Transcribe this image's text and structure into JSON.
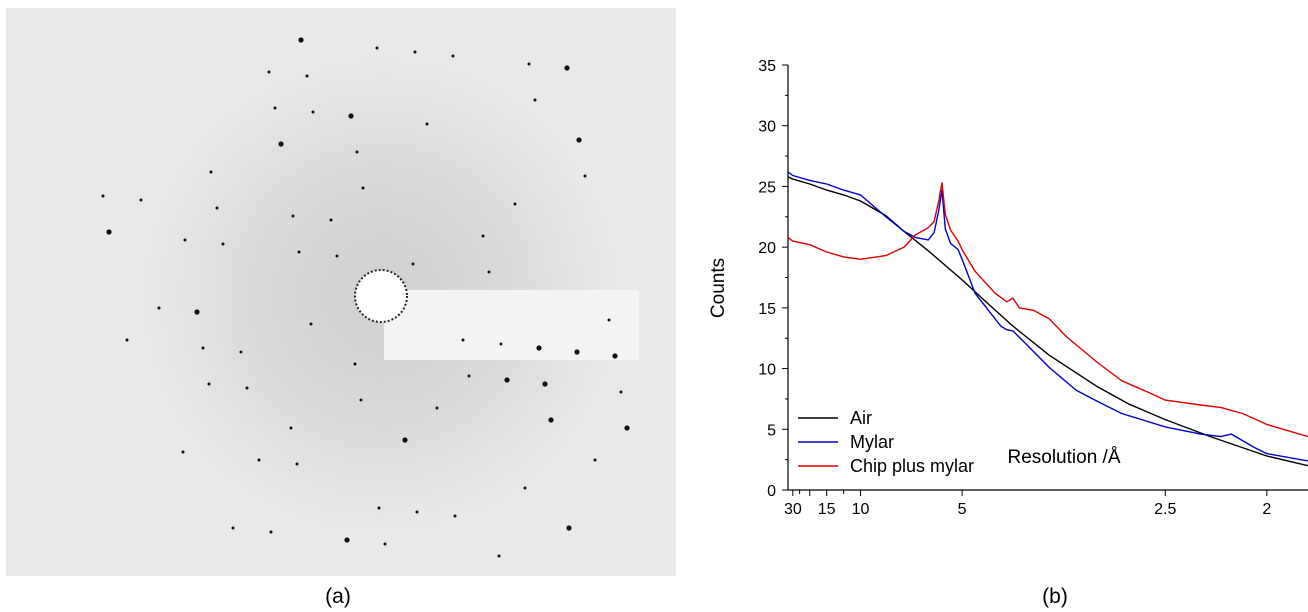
{
  "captions": {
    "a": "(a)",
    "b": "(b)"
  },
  "chart_data": {
    "type": "line",
    "xlabel": "Resolution /Å",
    "ylabel": "Counts",
    "x_scale": "reciprocal",
    "xlim": [
      35,
      1.85
    ],
    "ylim": [
      0,
      35
    ],
    "y_ticks": [
      0,
      5,
      10,
      15,
      20,
      25,
      30,
      35
    ],
    "x_ticks": [
      {
        "value": 30,
        "label": "30"
      },
      {
        "value": 20,
        "label": ""
      },
      {
        "value": 15,
        "label": "15"
      },
      {
        "value": 10,
        "label": "10"
      },
      {
        "value": 5,
        "label": "5"
      },
      {
        "value": 2.5,
        "label": "2.5"
      },
      {
        "value": 2,
        "label": "2"
      }
    ],
    "legend_position": "bottom-left",
    "series": [
      {
        "name": "Air",
        "color": "#000000",
        "x": [
          35,
          30,
          20,
          15,
          12,
          10,
          8,
          7,
          6,
          5,
          4.5,
          4,
          3.5,
          3,
          2.75,
          2.5,
          2.25,
          2,
          1.85
        ],
        "y": [
          25.8,
          25.6,
          25.2,
          24.7,
          24.3,
          23.8,
          22.6,
          21.3,
          19.7,
          17.3,
          15.6,
          13.5,
          11.1,
          8.5,
          7.1,
          5.8,
          4.4,
          2.8,
          2.0
        ]
      },
      {
        "name": "Mylar",
        "color": "#0000cc",
        "x": [
          35,
          30,
          20,
          15,
          12,
          10,
          8,
          7,
          6.5,
          6.0,
          5.8,
          5.65,
          5.55,
          5.45,
          5.3,
          5.1,
          5,
          4.7,
          4.2,
          4.1,
          4.0,
          3.8,
          3.5,
          3.2,
          3,
          2.8,
          2.5,
          2.3,
          2.2,
          2.15,
          2.05,
          2,
          1.85
        ],
        "y": [
          26.2,
          25.9,
          25.5,
          25.2,
          24.7,
          24.3,
          22.5,
          21.3,
          20.8,
          20.6,
          21.2,
          23.0,
          24.7,
          21.5,
          20.3,
          19.8,
          19.0,
          16.2,
          13.5,
          13.2,
          13.1,
          12.0,
          10.1,
          8.2,
          7.3,
          6.3,
          5.2,
          4.6,
          4.4,
          4.6,
          3.5,
          3.0,
          2.4
        ]
      },
      {
        "name": "Chip plus mylar",
        "color": "#dd0000",
        "x": [
          35,
          30,
          20,
          15,
          12,
          10,
          8,
          7,
          6.5,
          6.0,
          5.8,
          5.65,
          5.55,
          5.45,
          5.3,
          5.1,
          5,
          4.7,
          4.3,
          4.1,
          4.0,
          3.9,
          3.7,
          3.5,
          3.3,
          3.0,
          2.8,
          2.6,
          2.5,
          2.3,
          2.2,
          2.1,
          2.0,
          1.85
        ],
        "y": [
          20.8,
          20.5,
          20.2,
          19.6,
          19.2,
          19.0,
          19.3,
          20.0,
          21.0,
          21.6,
          22.1,
          23.8,
          25.3,
          22.7,
          21.4,
          20.5,
          19.8,
          18.0,
          16.2,
          15.5,
          15.8,
          15.0,
          14.8,
          14.1,
          12.6,
          10.5,
          9.0,
          8.0,
          7.4,
          7.0,
          6.8,
          6.3,
          5.4,
          4.4
        ]
      }
    ]
  },
  "diffraction_image": {
    "background": "#e9e9e9",
    "shadow_color": "#d8d8d8",
    "beamstop_color": "#f3f3f3",
    "spot_color": "#111111"
  }
}
